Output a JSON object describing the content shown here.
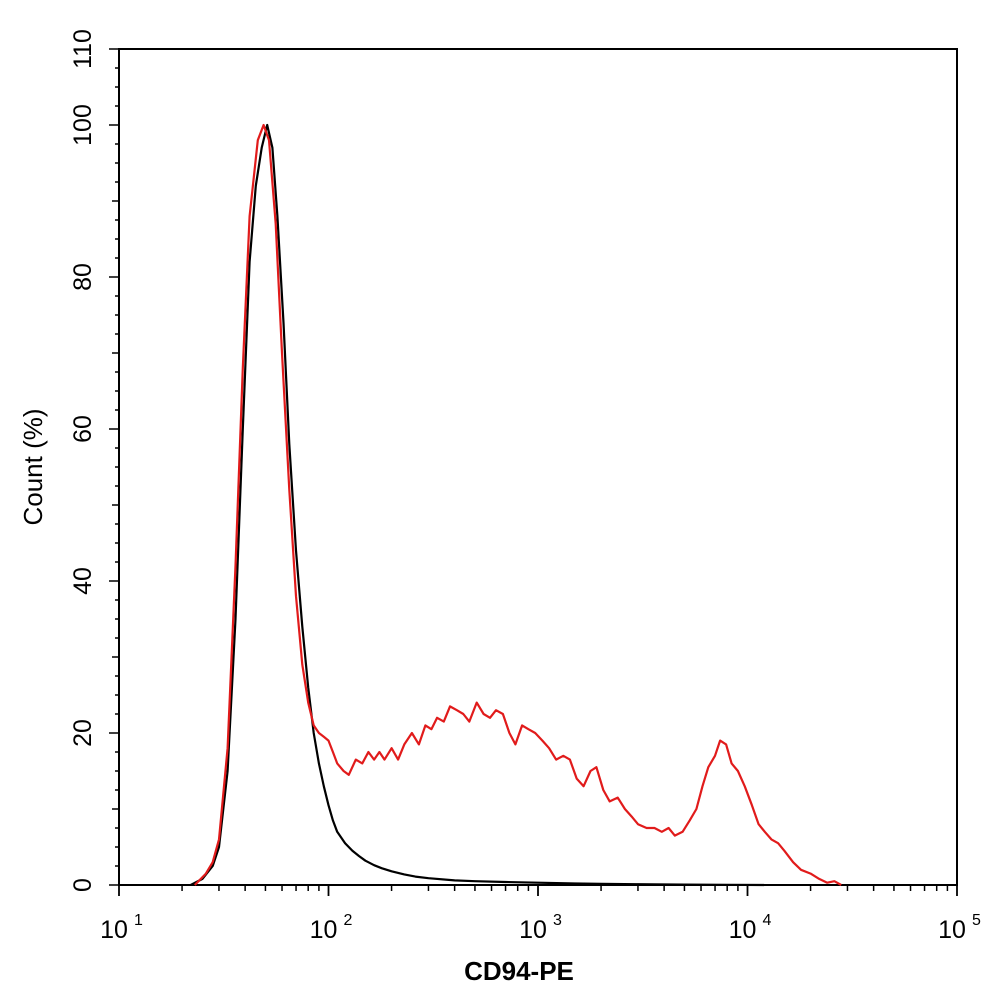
{
  "chart_data": {
    "type": "line",
    "title": "",
    "xlabel": "CD94-PE",
    "ylabel": "Count  (%)",
    "xscale": "log",
    "xlim": [
      10,
      100000
    ],
    "ylim": [
      0,
      110
    ],
    "x_ticks": [
      {
        "base": "10",
        "exp": "1",
        "value": 10
      },
      {
        "base": "10",
        "exp": "2",
        "value": 100
      },
      {
        "base": "10",
        "exp": "3",
        "value": 1000
      },
      {
        "base": "10",
        "exp": "4",
        "value": 10000
      },
      {
        "base": "10",
        "exp": "5",
        "value": 100000
      }
    ],
    "y_ticks": [
      "0",
      "20",
      "40",
      "60",
      "80",
      "100",
      "110"
    ],
    "grid": false,
    "series": [
      {
        "color": "#000000",
        "points": [
          [
            22,
            0
          ],
          [
            25,
            0.8
          ],
          [
            28,
            2.5
          ],
          [
            30,
            5
          ],
          [
            33,
            15
          ],
          [
            36,
            35
          ],
          [
            39,
            60
          ],
          [
            42,
            82
          ],
          [
            45,
            92
          ],
          [
            48,
            97
          ],
          [
            51,
            100
          ],
          [
            54,
            97
          ],
          [
            57,
            88
          ],
          [
            61,
            74
          ],
          [
            65,
            58
          ],
          [
            70,
            44
          ],
          [
            75,
            34
          ],
          [
            80,
            26
          ],
          [
            85,
            20
          ],
          [
            90,
            16
          ],
          [
            95,
            13
          ],
          [
            100,
            10.5
          ],
          [
            105,
            8.5
          ],
          [
            110,
            7
          ],
          [
            120,
            5.5
          ],
          [
            130,
            4.5
          ],
          [
            140,
            3.8
          ],
          [
            150,
            3.2
          ],
          [
            165,
            2.6
          ],
          [
            180,
            2.2
          ],
          [
            200,
            1.8
          ],
          [
            230,
            1.4
          ],
          [
            260,
            1.1
          ],
          [
            300,
            0.9
          ],
          [
            400,
            0.6
          ],
          [
            500,
            0.5
          ],
          [
            700,
            0.4
          ],
          [
            1000,
            0.3
          ],
          [
            1500,
            0.2
          ],
          [
            2000,
            0.15
          ],
          [
            3000,
            0.1
          ],
          [
            5000,
            0.05
          ],
          [
            8000,
            0.02
          ],
          [
            12000,
            0
          ]
        ]
      },
      {
        "color": "#e11b1b",
        "points": [
          [
            23,
            0
          ],
          [
            26,
            1.5
          ],
          [
            28,
            3
          ],
          [
            30,
            6
          ],
          [
            33,
            18
          ],
          [
            36,
            42
          ],
          [
            39,
            68
          ],
          [
            42,
            88
          ],
          [
            46,
            98
          ],
          [
            49,
            100
          ],
          [
            52,
            98
          ],
          [
            56,
            87
          ],
          [
            60,
            70
          ],
          [
            65,
            52
          ],
          [
            70,
            38
          ],
          [
            75,
            29
          ],
          [
            80,
            24
          ],
          [
            85,
            21
          ],
          [
            90,
            20
          ],
          [
            95,
            19.5
          ],
          [
            100,
            19
          ],
          [
            105,
            17.5
          ],
          [
            110,
            16
          ],
          [
            118,
            15
          ],
          [
            125,
            14.5
          ],
          [
            135,
            16.5
          ],
          [
            145,
            16
          ],
          [
            155,
            17.5
          ],
          [
            165,
            16.5
          ],
          [
            175,
            17.5
          ],
          [
            185,
            16.5
          ],
          [
            200,
            18
          ],
          [
            215,
            16.5
          ],
          [
            230,
            18.5
          ],
          [
            250,
            20
          ],
          [
            270,
            18.5
          ],
          [
            290,
            21
          ],
          [
            310,
            20.5
          ],
          [
            330,
            22
          ],
          [
            355,
            21.5
          ],
          [
            380,
            23.5
          ],
          [
            410,
            23
          ],
          [
            440,
            22.5
          ],
          [
            470,
            21.5
          ],
          [
            510,
            24
          ],
          [
            550,
            22.5
          ],
          [
            590,
            22
          ],
          [
            630,
            23
          ],
          [
            680,
            22.5
          ],
          [
            730,
            20
          ],
          [
            780,
            18.5
          ],
          [
            840,
            21
          ],
          [
            900,
            20.5
          ],
          [
            970,
            20
          ],
          [
            1050,
            19
          ],
          [
            1130,
            18
          ],
          [
            1220,
            16.5
          ],
          [
            1320,
            17
          ],
          [
            1420,
            16.5
          ],
          [
            1530,
            14
          ],
          [
            1650,
            13
          ],
          [
            1780,
            15
          ],
          [
            1900,
            15.5
          ],
          [
            2050,
            12.5
          ],
          [
            2200,
            11
          ],
          [
            2400,
            11.5
          ],
          [
            2600,
            10
          ],
          [
            2800,
            9
          ],
          [
            3000,
            8
          ],
          [
            3300,
            7.5
          ],
          [
            3600,
            7.5
          ],
          [
            3900,
            7
          ],
          [
            4200,
            7.5
          ],
          [
            4500,
            6.5
          ],
          [
            4900,
            7
          ],
          [
            5300,
            8.5
          ],
          [
            5700,
            10
          ],
          [
            6100,
            13
          ],
          [
            6500,
            15.5
          ],
          [
            7000,
            17
          ],
          [
            7400,
            19
          ],
          [
            7900,
            18.5
          ],
          [
            8400,
            16
          ],
          [
            9000,
            15
          ],
          [
            9700,
            13
          ],
          [
            10500,
            10.5
          ],
          [
            11300,
            8
          ],
          [
            12100,
            7
          ],
          [
            13000,
            6
          ],
          [
            14000,
            5.5
          ],
          [
            15000,
            4.5
          ],
          [
            16500,
            3
          ],
          [
            18000,
            2
          ],
          [
            20000,
            1.5
          ],
          [
            22000,
            0.8
          ],
          [
            24000,
            0.3
          ],
          [
            26000,
            0.5
          ],
          [
            28000,
            0
          ]
        ]
      }
    ]
  }
}
